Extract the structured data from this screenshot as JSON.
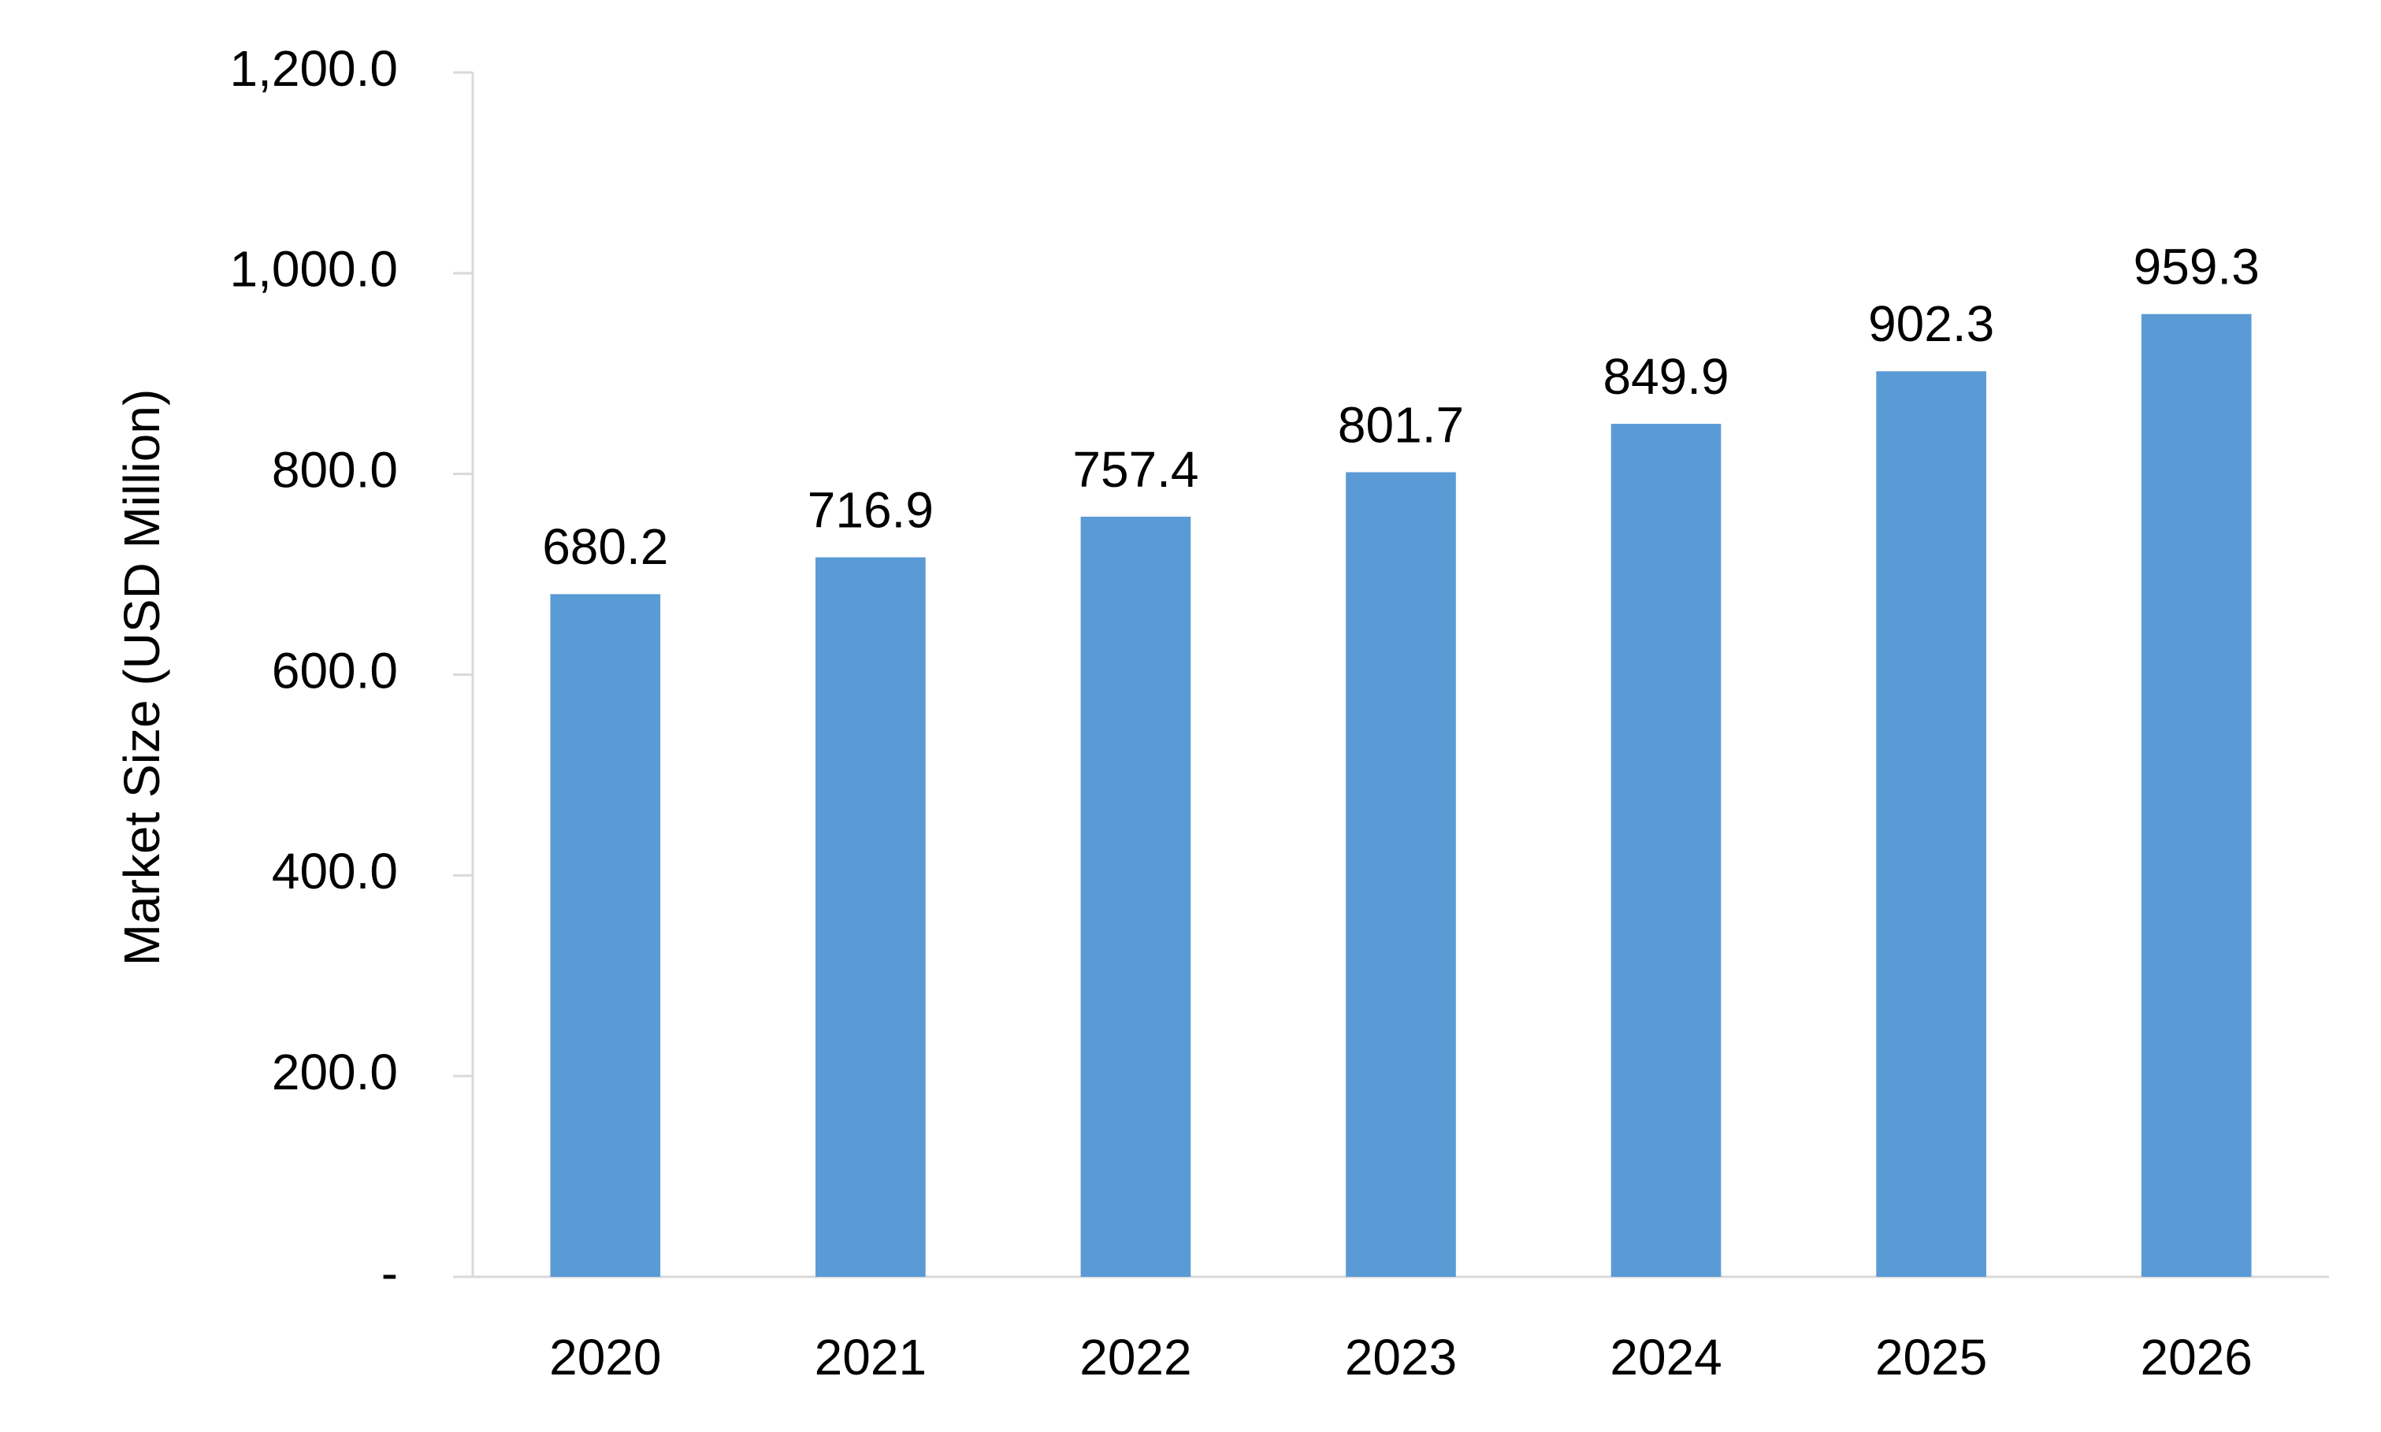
{
  "chart_data": {
    "type": "bar",
    "title": "",
    "xlabel": "",
    "ylabel": "Market Size (USD Million)",
    "categories": [
      "2020",
      "2021",
      "2022",
      "2023",
      "2024",
      "2025",
      "2026"
    ],
    "values": [
      680.2,
      716.9,
      757.4,
      801.7,
      849.9,
      902.3,
      959.3
    ],
    "value_labels": [
      "680.2",
      "716.9",
      "757.4",
      "801.7",
      "849.9",
      "902.3",
      "959.3"
    ],
    "ylim": [
      0,
      1200
    ],
    "yticks": [
      {
        "value": 0,
        "label": "-"
      },
      {
        "value": 200,
        "label": "200.0"
      },
      {
        "value": 400,
        "label": "400.0"
      },
      {
        "value": 600,
        "label": "600.0"
      },
      {
        "value": 800,
        "label": "800.0"
      },
      {
        "value": 1000,
        "label": "1,000.0"
      },
      {
        "value": 1200,
        "label": "1,200.0"
      }
    ],
    "grid": false,
    "legend": "none",
    "colors": {
      "bar": "#5B9BD5",
      "axis": "#D9D9D9",
      "text": "#000000"
    }
  }
}
